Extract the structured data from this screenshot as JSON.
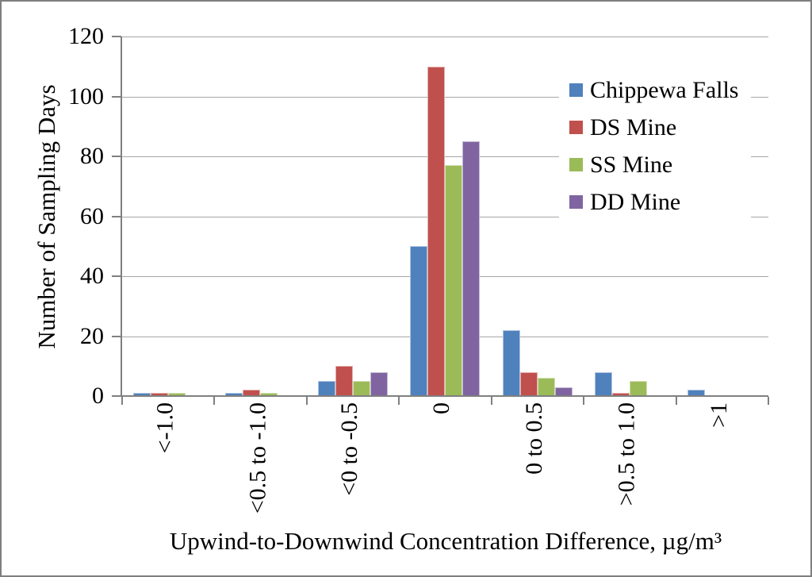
{
  "chart_data": {
    "type": "bar",
    "title": "",
    "categories": [
      "<-1.0",
      "<0.5 to -1.0",
      "<0 to -0.5",
      "0",
      "0 to 0.5",
      ">0.5 to 1.0",
      ">1"
    ],
    "series": [
      {
        "name": "Chippewa Falls",
        "color": "#4F81BD",
        "values": [
          1,
          1,
          5,
          50,
          22,
          8,
          2
        ]
      },
      {
        "name": "DS Mine",
        "color": "#C0504D",
        "values": [
          1,
          2,
          10,
          110,
          8,
          1,
          0
        ]
      },
      {
        "name": "SS Mine",
        "color": "#9BBB59",
        "values": [
          1,
          1,
          5,
          77,
          6,
          5,
          0
        ]
      },
      {
        "name": "DD Mine",
        "color": "#8064A2",
        "values": [
          0,
          0,
          8,
          85,
          3,
          0,
          0
        ]
      }
    ],
    "xlabel": "Upwind-to-Downwind Concentration Difference, µg/m³",
    "ylabel": "Number of Sampling Days",
    "ylim": [
      0,
      120
    ],
    "ytick_step": 20,
    "yticks": [
      "0",
      "20",
      "40",
      "60",
      "80",
      "100",
      "120"
    ],
    "grid": "horizontal-only",
    "legend_position": "inside-top-right"
  },
  "colors": {
    "gridline": "#A6A6A6",
    "axis": "#808080",
    "border": "#7F7F7F",
    "background": "#FFFFFF",
    "text": "#000000"
  }
}
